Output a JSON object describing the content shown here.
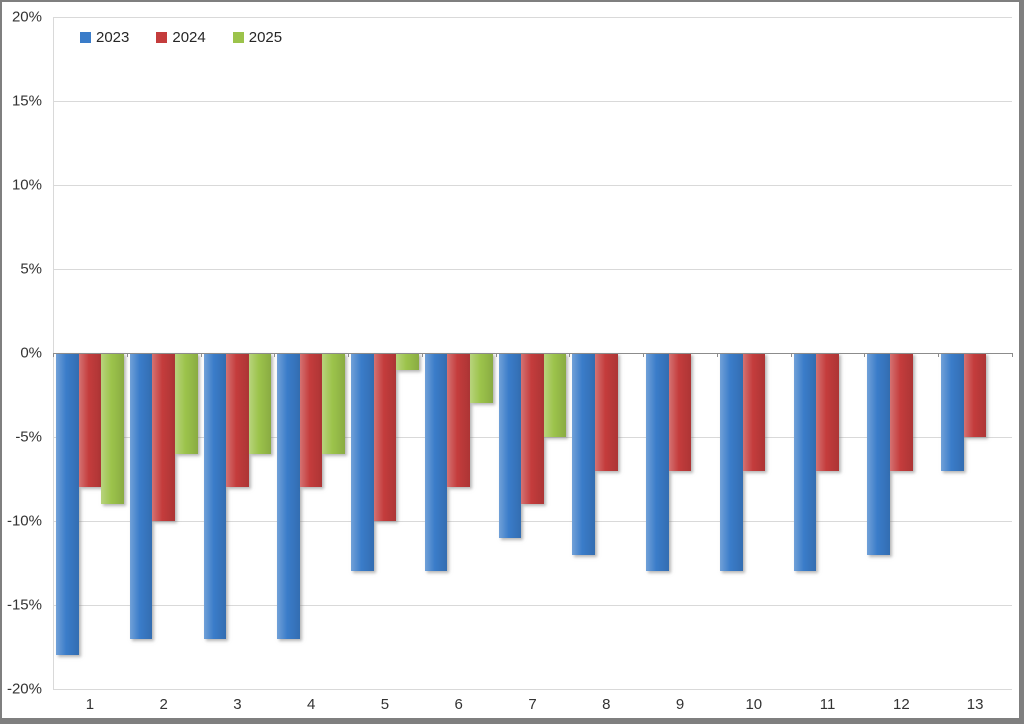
{
  "chart_data": {
    "type": "bar",
    "title": "",
    "xlabel": "",
    "ylabel": "",
    "categories": [
      "1",
      "2",
      "3",
      "4",
      "5",
      "6",
      "7",
      "8",
      "9",
      "10",
      "11",
      "12",
      "13"
    ],
    "series": [
      {
        "name": "2023",
        "color": "#3a7cc9",
        "values": [
          -18,
          -17,
          -17,
          -17,
          -13,
          -13,
          -11,
          -12,
          -13,
          -13,
          -13,
          -12,
          -7
        ]
      },
      {
        "name": "2024",
        "color": "#c43c3c",
        "values": [
          -8,
          -10,
          -8,
          -8,
          -10,
          -8,
          -9,
          -7,
          -7,
          -7,
          -7,
          -7,
          -5
        ]
      },
      {
        "name": "2025",
        "color": "#9cc34b",
        "values": [
          -9,
          -6,
          -6,
          -6,
          -1,
          -3,
          -5,
          null,
          null,
          null,
          null,
          null,
          null
        ]
      }
    ],
    "ylim": [
      -20,
      20
    ],
    "ytick_step": 5,
    "ytick_labels": [
      "20%",
      "15%",
      "10%",
      "5%",
      "0%",
      "-5%",
      "-10%",
      "-15%",
      "-20%"
    ],
    "grid": true,
    "legend_position": "top-left"
  },
  "colors": {
    "gridline": "#d9d9d9",
    "zero_axis": "#8c8c8c",
    "axis_text": "#333333",
    "frame_border": "#7f7f7f"
  }
}
